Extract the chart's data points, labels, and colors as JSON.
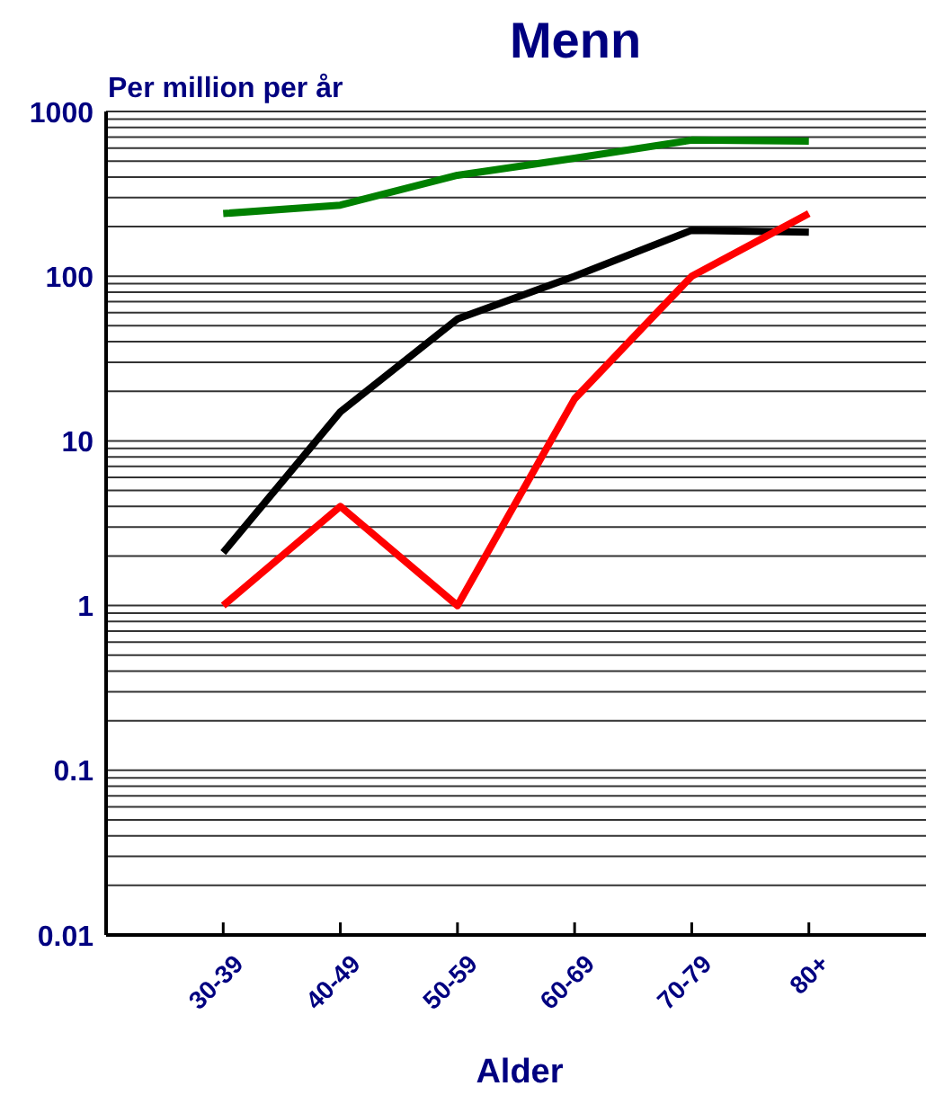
{
  "chart_data": {
    "type": "line",
    "title": "Menn",
    "ylabel": "Per million per år",
    "xlabel": "Alder",
    "categories": [
      "30-39",
      "40-49",
      "50-59",
      "60-69",
      "70-79",
      "80+"
    ],
    "series": [
      {
        "color": "#008000",
        "values": [
          240,
          270,
          410,
          520,
          670,
          660
        ]
      },
      {
        "color": "#000000",
        "values": [
          2.1,
          15,
          55,
          100,
          190,
          185
        ]
      },
      {
        "color": "#ff0000",
        "values": [
          1,
          4,
          1,
          18,
          100,
          240
        ]
      }
    ],
    "log": "y",
    "ylim": [
      0.01,
      1000
    ],
    "yticks": [
      0.01,
      {
        "value": 0.02,
        "label": null
      },
      {
        "value": 0.03,
        "label": null
      },
      {
        "value": 0.04,
        "label": null
      },
      {
        "value": 0.05,
        "label": null
      },
      {
        "value": 0.06,
        "label": null
      },
      {
        "value": 0.07,
        "label": null
      },
      {
        "value": 0.08,
        "label": null
      },
      {
        "value": 0.09,
        "label": null
      },
      0.1,
      {
        "value": 0.2,
        "label": null
      },
      {
        "value": 0.3,
        "label": null
      },
      {
        "value": 0.4,
        "label": null
      },
      {
        "value": 0.5,
        "label": null
      },
      {
        "value": 0.6,
        "label": null
      },
      {
        "value": 0.7,
        "label": null
      },
      {
        "value": 0.8,
        "label": null
      },
      {
        "value": 0.9,
        "label": null
      },
      1,
      {
        "value": 2,
        "label": null
      },
      {
        "value": 3,
        "label": null
      },
      {
        "value": 4,
        "label": null
      },
      {
        "value": 5,
        "label": null
      },
      {
        "value": 6,
        "label": null
      },
      {
        "value": 7,
        "label": null
      },
      {
        "value": 8,
        "label": null
      },
      {
        "value": 9,
        "label": null
      },
      10,
      {
        "value": 20,
        "label": null
      },
      {
        "value": 30,
        "label": null
      },
      {
        "value": 40,
        "label": null
      },
      {
        "value": 50,
        "label": null
      },
      {
        "value": 60,
        "label": null
      },
      {
        "value": 70,
        "label": null
      },
      {
        "value": 80,
        "label": null
      },
      {
        "value": 90,
        "label": null
      },
      100,
      {
        "value": 200,
        "label": null
      },
      {
        "value": 300,
        "label": null
      },
      {
        "value": 400,
        "label": null
      },
      {
        "value": 500,
        "label": null
      },
      {
        "value": 600,
        "label": null
      },
      {
        "value": 700,
        "label": null
      },
      {
        "value": 800,
        "label": null
      },
      {
        "value": 900,
        "label": null
      },
      1000
    ],
    "grid": true
  }
}
